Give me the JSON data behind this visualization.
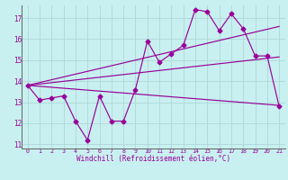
{
  "xlabel": "Windchill (Refroidissement éolien,°C)",
  "bg_color": "#c8f0f0",
  "grid_color": "#b0d8d8",
  "line_color": "#990099",
  "xlim": [
    -0.5,
    21.5
  ],
  "ylim": [
    10.8,
    17.6
  ],
  "xticks": [
    0,
    1,
    2,
    3,
    4,
    5,
    6,
    7,
    8,
    9,
    10,
    11,
    12,
    13,
    14,
    15,
    16,
    17,
    18,
    19,
    20,
    21
  ],
  "yticks": [
    11,
    12,
    13,
    14,
    15,
    16,
    17
  ],
  "series1_x": [
    0,
    1,
    2,
    3,
    4,
    5,
    6,
    7,
    8,
    9,
    10,
    11,
    12,
    13,
    14,
    15,
    16,
    17,
    18,
    19,
    20,
    21
  ],
  "series1_y": [
    13.8,
    13.1,
    13.2,
    13.3,
    12.1,
    11.2,
    13.3,
    12.1,
    12.1,
    13.6,
    15.9,
    14.9,
    15.3,
    15.7,
    17.4,
    17.3,
    16.4,
    17.2,
    16.5,
    15.2,
    15.2,
    12.8
  ],
  "series2_x": [
    0,
    21
  ],
  "series2_y": [
    13.8,
    16.6
  ],
  "series3_x": [
    0,
    21
  ],
  "series3_y": [
    13.8,
    15.15
  ],
  "series4_x": [
    0,
    21
  ],
  "series4_y": [
    13.8,
    12.85
  ],
  "marker": "D",
  "markersize": 2.5,
  "linewidth": 0.85
}
